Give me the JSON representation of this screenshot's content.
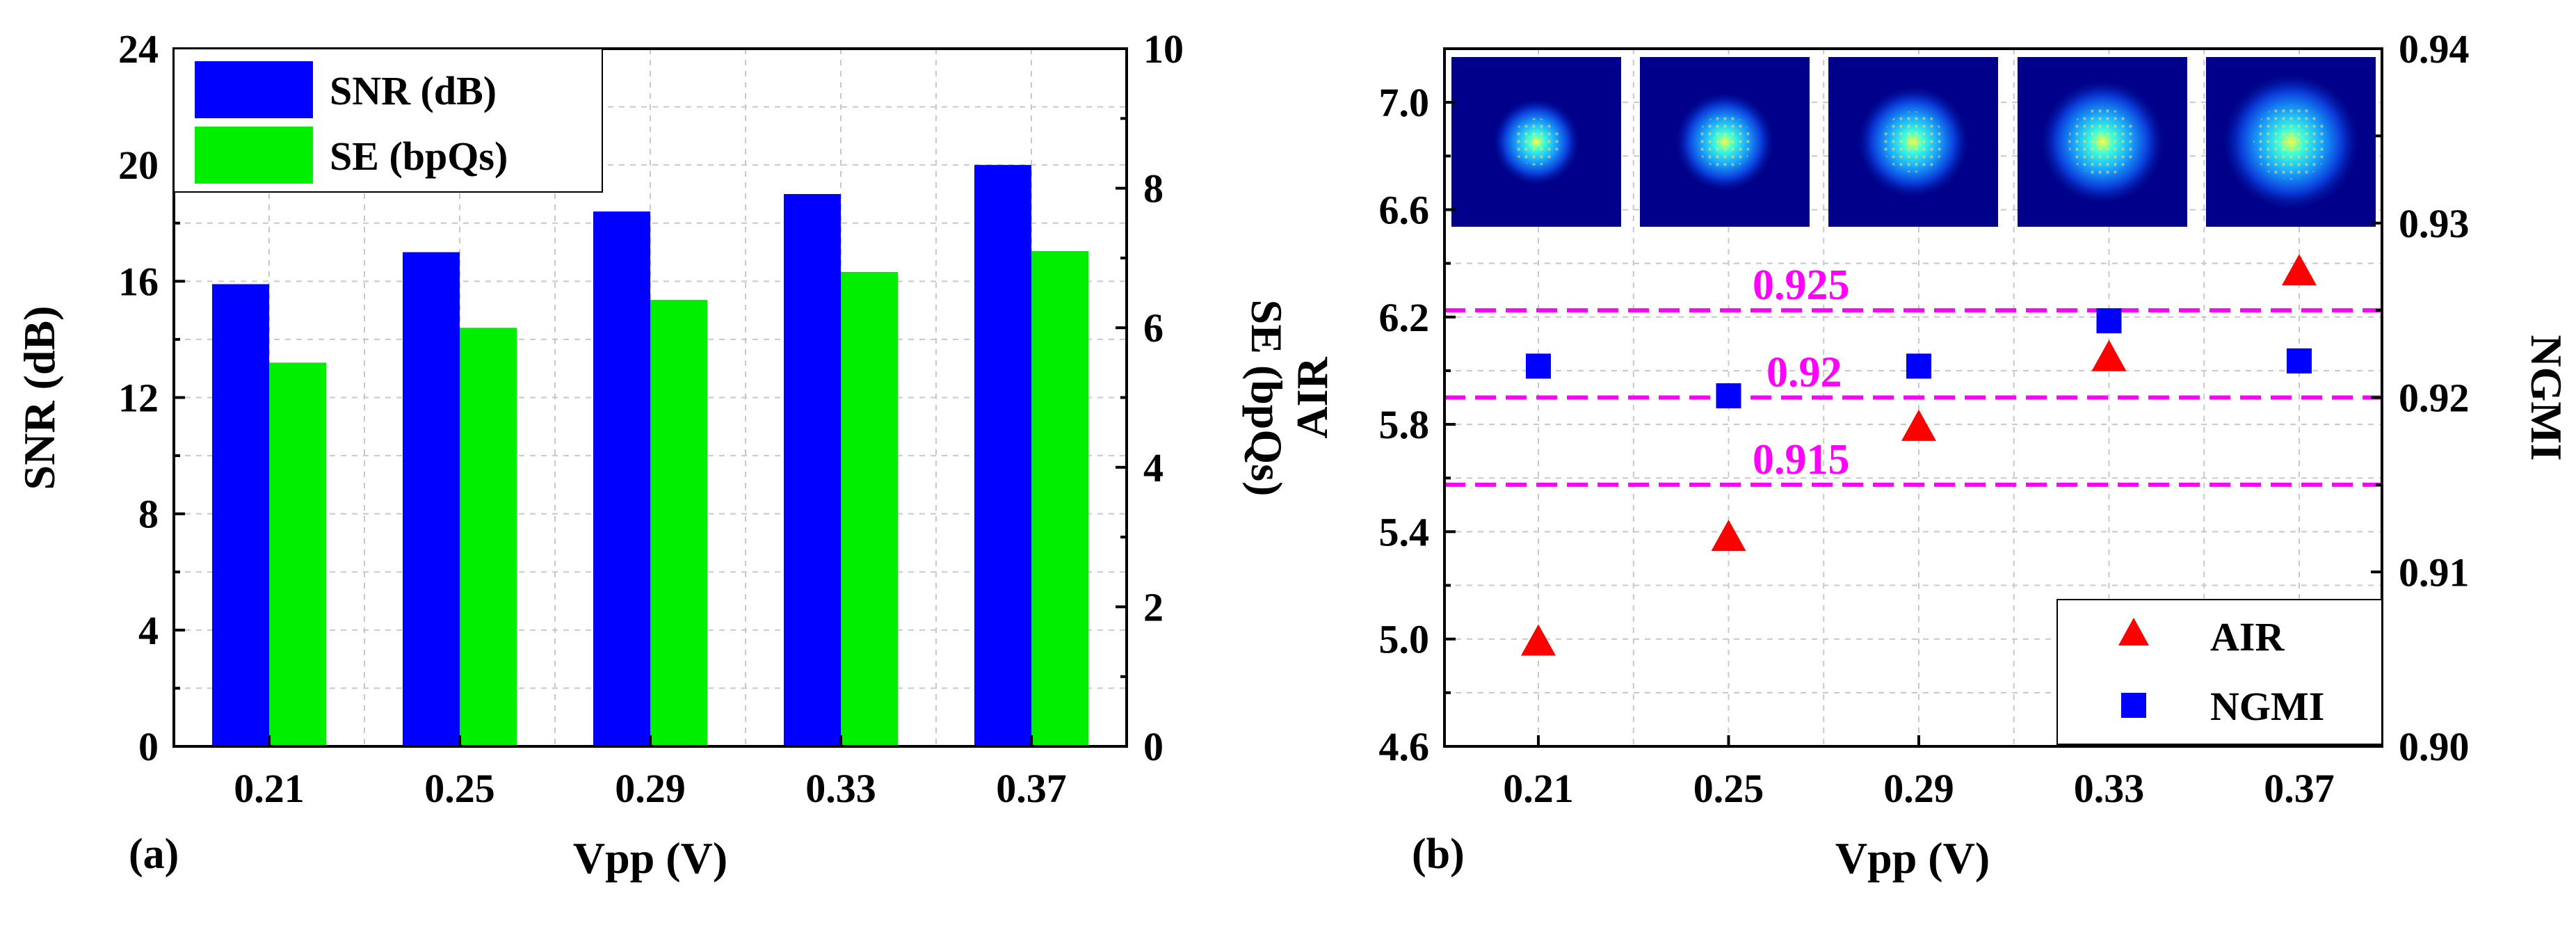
{
  "colors": {
    "snr": "#0000ff",
    "se": "#00ee00",
    "air": "#ff0000",
    "ngmi": "#0000ff",
    "ref": "#ff00ff",
    "grid": "#c8c8c8"
  },
  "chart_data": [
    {
      "type": "bar",
      "panel_label": "(a)",
      "categories": [
        "0.21",
        "0.25",
        "0.29",
        "0.33",
        "0.37"
      ],
      "xlabel": "Vpp (V)",
      "ylabel": "SNR (dB)",
      "y2label": "SE (bpQs)",
      "ylim": [
        0,
        24
      ],
      "y2lim": [
        0,
        10
      ],
      "yticks": [
        "0",
        "4",
        "8",
        "12",
        "16",
        "20",
        "24"
      ],
      "y2ticks": [
        "0",
        "2",
        "4",
        "6",
        "8",
        "10"
      ],
      "legend_position": "top-left",
      "series": [
        {
          "name": "SNR (dB)",
          "axis": "left",
          "values": [
            15.9,
            17.0,
            18.4,
            19.0,
            20.0
          ]
        },
        {
          "name": "SE (bpQs)",
          "axis": "right",
          "values": [
            5.5,
            6.0,
            6.4,
            6.8,
            7.1
          ]
        }
      ]
    },
    {
      "type": "scatter",
      "panel_label": "(b)",
      "categories": [
        "0.21",
        "0.25",
        "0.29",
        "0.33",
        "0.37"
      ],
      "xlabel": "Vpp (V)",
      "ylabel": "AIR",
      "y2label": "NGMI",
      "ylim": [
        4.6,
        7.2
      ],
      "y2lim": [
        0.9,
        0.94
      ],
      "yticks": [
        "4.6",
        "5.0",
        "5.4",
        "5.8",
        "6.2",
        "6.6",
        "7.0"
      ],
      "y2ticks": [
        "0.90",
        "0.91",
        "0.92",
        "0.93",
        "0.94"
      ],
      "legend_position": "bottom-right",
      "series": [
        {
          "name": "AIR",
          "axis": "left",
          "marker": "triangle",
          "values": [
            4.99,
            5.38,
            5.79,
            6.05,
            6.37
          ]
        },
        {
          "name": "NGMI",
          "axis": "right",
          "marker": "square",
          "values": [
            0.9218,
            0.9201,
            0.9218,
            0.9244,
            0.9221
          ]
        }
      ],
      "reference_lines": [
        {
          "label": "0.925",
          "value": 0.925
        },
        {
          "label": "0.92",
          "value": 0.92
        },
        {
          "label": "0.915",
          "value": 0.915
        }
      ],
      "insets": [
        "constellation-0.21",
        "constellation-0.25",
        "constellation-0.29",
        "constellation-0.33",
        "constellation-0.37"
      ]
    }
  ]
}
